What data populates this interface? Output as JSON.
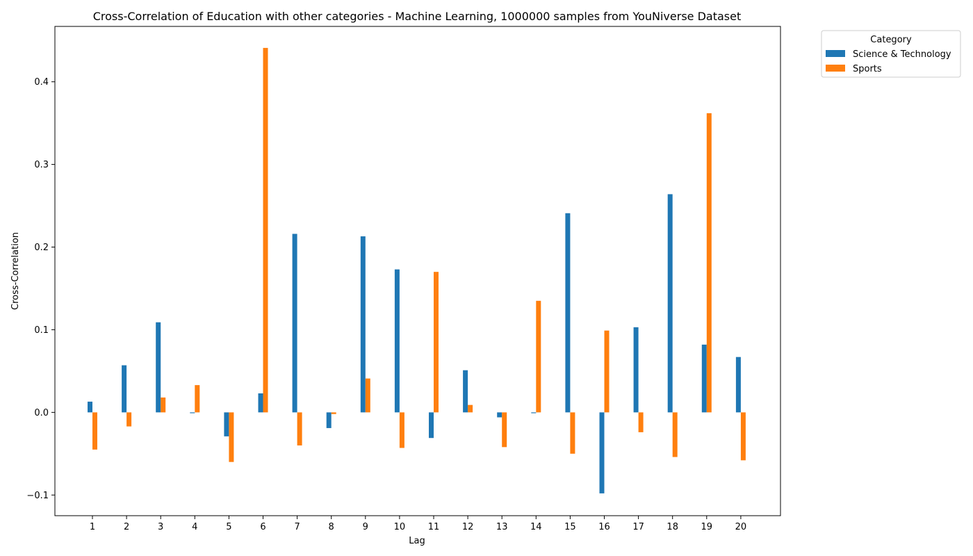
{
  "chart_data": {
    "type": "bar",
    "title": "Cross-Correlation of Education with other categories - Machine Learning, 1000000 samples from YouNiverse Dataset",
    "xlabel": "Lag",
    "ylabel": "Cross-Correlation",
    "categories": [
      "1",
      "2",
      "3",
      "4",
      "5",
      "6",
      "7",
      "8",
      "9",
      "10",
      "11",
      "12",
      "13",
      "14",
      "15",
      "16",
      "17",
      "18",
      "19",
      "20"
    ],
    "series": [
      {
        "name": "Science & Technology",
        "color": "#1f77b4",
        "values": [
          0.013,
          0.057,
          0.109,
          -0.001,
          -0.029,
          0.023,
          0.216,
          -0.019,
          0.213,
          0.173,
          -0.031,
          0.051,
          -0.006,
          -0.001,
          0.241,
          -0.098,
          0.103,
          0.264,
          0.082,
          0.067
        ]
      },
      {
        "name": "Sports",
        "color": "#ff7f0e",
        "values": [
          -0.045,
          -0.017,
          0.018,
          0.033,
          -0.06,
          0.441,
          -0.04,
          -0.002,
          0.041,
          -0.043,
          0.17,
          0.009,
          -0.042,
          0.135,
          -0.05,
          0.099,
          -0.024,
          -0.054,
          0.362,
          -0.058
        ]
      }
    ],
    "ylim": [
      -0.125,
      0.467
    ],
    "yticks": [
      -0.1,
      0.0,
      0.1,
      0.2,
      0.3,
      0.4
    ],
    "ytick_labels": [
      "−0.1",
      "0.0",
      "0.1",
      "0.2",
      "0.3",
      "0.4"
    ],
    "grid": false,
    "legend": {
      "title": "Category",
      "placement": "outside-top-right"
    }
  }
}
